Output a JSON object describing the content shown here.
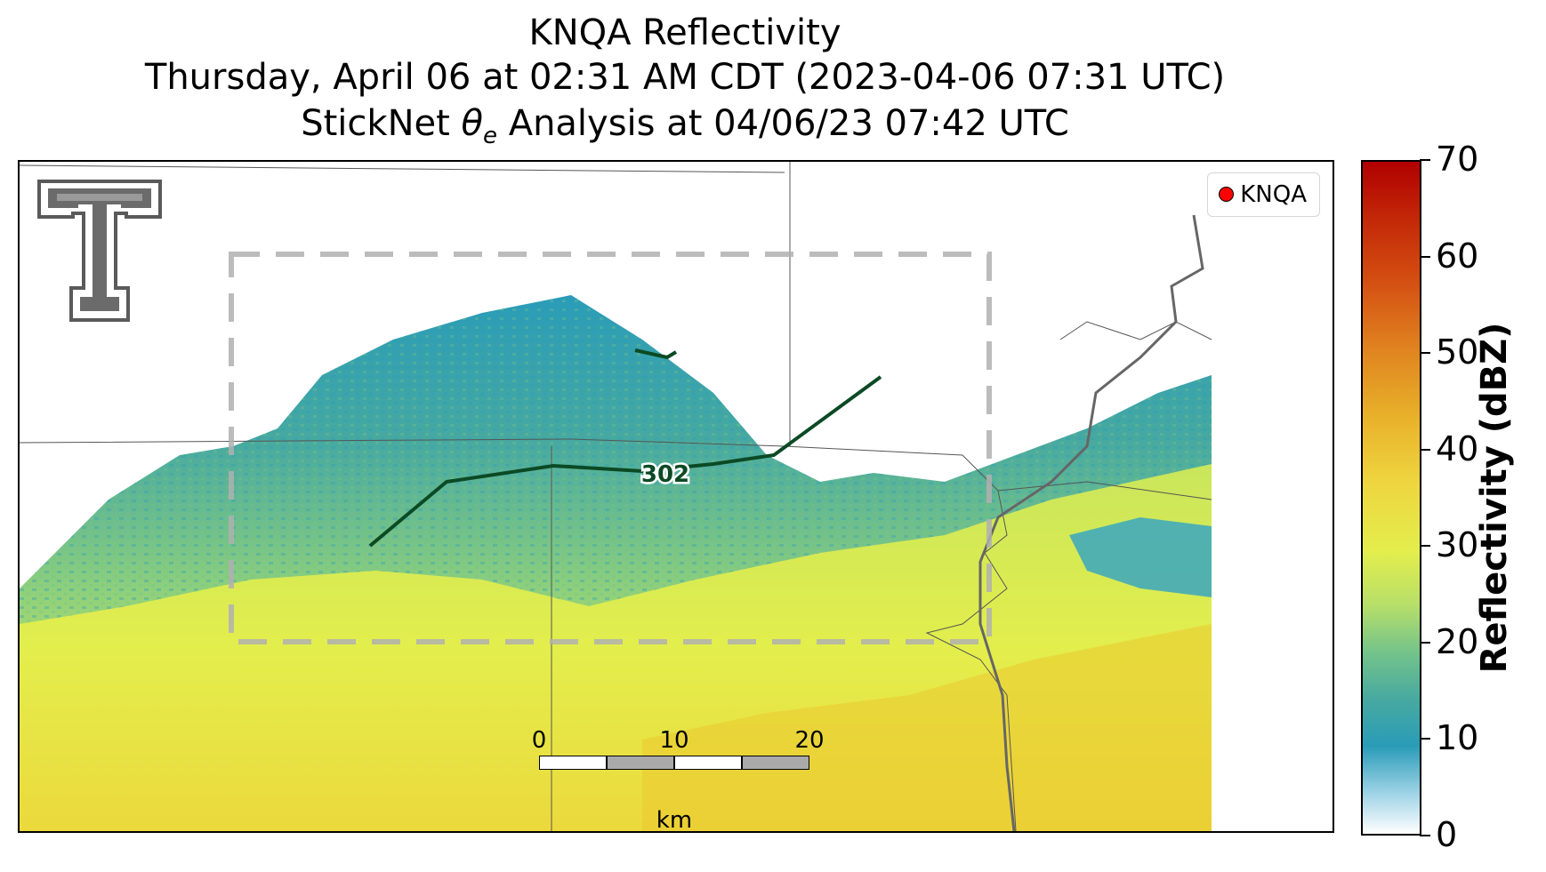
{
  "title": {
    "line1": "KNQA Reflectivity",
    "line2": "Thursday, April 06 at 02:31 AM CDT (2023-04-06 07:31 UTC)",
    "line3_prefix": "StickNet ",
    "line3_symbol": "θ",
    "line3_subscript": "e",
    "line3_suffix": " Analysis at 04/06/23 07:42 UTC"
  },
  "legend": {
    "label": "KNQA",
    "marker_color": "#ff0000"
  },
  "contour": {
    "label": "302",
    "color": "#0b4a24"
  },
  "scalebar": {
    "ticks": [
      "0",
      "10",
      "20"
    ],
    "unit": "km"
  },
  "colorbar": {
    "label": "Reflectivity (dBZ)",
    "ticks": [
      "0",
      "10",
      "20",
      "30",
      "40",
      "50",
      "60",
      "70"
    ],
    "min": 0,
    "max": 70,
    "colors": [
      "#ffffff",
      "#2a9cb8",
      "#74c38a",
      "#e3ee4c",
      "#efd640",
      "#e08420",
      "#d45012",
      "#b00000"
    ]
  },
  "logo": {
    "icon": "texas-tech-double-t-logo"
  }
}
